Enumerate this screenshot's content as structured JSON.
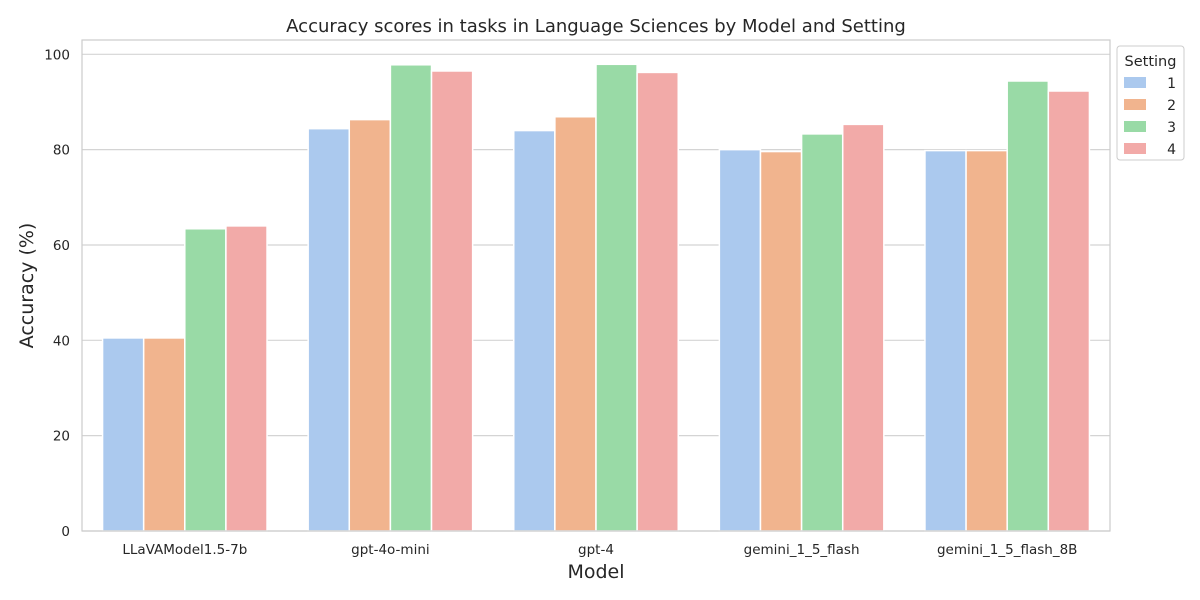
{
  "chart_data": {
    "type": "bar",
    "title": "Accuracy scores in tasks in Language Sciences by Model and Setting",
    "xlabel": "Model",
    "ylabel": "Accuracy (%)",
    "categories": [
      "LLaVAModel1.5-7b",
      "gpt-4o-mini",
      "gpt-4",
      "gemini_1_5_flash",
      "gemini_1_5_flash_8B"
    ],
    "series": [
      {
        "name": "1",
        "color": "#abc9ee",
        "values": [
          40.5,
          84.4,
          84.0,
          80.0,
          79.8
        ]
      },
      {
        "name": "2",
        "color": "#f1b48e",
        "values": [
          40.5,
          86.3,
          86.9,
          79.6,
          79.8
        ]
      },
      {
        "name": "3",
        "color": "#99daa6",
        "values": [
          63.4,
          97.8,
          97.9,
          83.3,
          94.4
        ]
      },
      {
        "name": "4",
        "color": "#f2aaa8",
        "values": [
          64.0,
          96.5,
          96.2,
          85.3,
          92.3
        ]
      }
    ],
    "yticks": [
      0,
      20,
      40,
      60,
      80,
      100
    ],
    "ylim": [
      0,
      103.0
    ],
    "grid": "horizontal",
    "legend": {
      "title": "Setting",
      "position": "top-right outside"
    }
  }
}
